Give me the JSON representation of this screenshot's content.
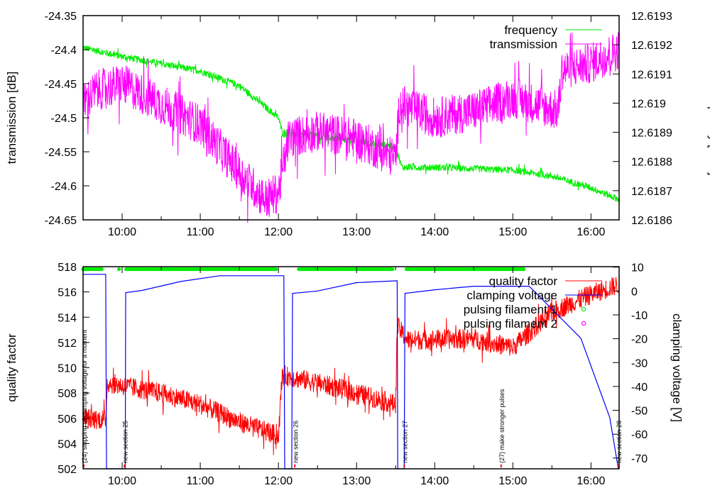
{
  "chart_data": [
    {
      "type": "line",
      "panel": "top",
      "ylabel": "transmission [dB]",
      "y2label": "frequency [GHz]",
      "xlim_hours": [
        9.5,
        16.36
      ],
      "xticks": [
        "10:00",
        "11:00",
        "12:00",
        "13:00",
        "14:00",
        "15:00",
        "16:00"
      ],
      "xtick_hours": [
        10,
        11,
        12,
        13,
        14,
        15,
        16
      ],
      "ylim": [
        -24.65,
        -24.35
      ],
      "yticks": [
        "-24.35",
        "-24.4",
        "-24.45",
        "-24.5",
        "-24.55",
        "-24.6",
        "-24.65"
      ],
      "ytick_values": [
        -24.35,
        -24.4,
        -24.45,
        -24.5,
        -24.55,
        -24.6,
        -24.65
      ],
      "y2lim": [
        12.6186,
        12.6193
      ],
      "y2ticks": [
        "12.6193",
        "12.6192",
        "12.6191",
        "12.619",
        "12.6189",
        "12.6188",
        "12.6187",
        "12.6186"
      ],
      "y2tick_values": [
        12.6193,
        12.6192,
        12.6191,
        12.619,
        12.6189,
        12.6188,
        12.6187,
        12.6186
      ],
      "legend_position": "top-right",
      "series": [
        {
          "name": "frequency",
          "axis": "y2",
          "color": "#00ee00",
          "noise": 1.2e-05,
          "x": [
            9.5,
            10.0,
            11.0,
            11.5,
            12.0,
            12.05,
            13.0,
            13.5,
            13.58,
            14.0,
            15.0,
            15.5,
            16.0,
            16.36
          ],
          "y": [
            12.61919,
            12.61916,
            12.61911,
            12.61906,
            12.61895,
            12.6189,
            12.61887,
            12.61885,
            12.61878,
            12.61878,
            12.61877,
            12.61875,
            12.61871,
            12.61867
          ]
        },
        {
          "name": "transmission",
          "axis": "y",
          "color": "#ff00ff",
          "noise": 0.03,
          "x": [
            9.5,
            9.67,
            10.0,
            10.5,
            11.0,
            11.5,
            11.83,
            12.0,
            12.13,
            12.5,
            13.0,
            13.5,
            13.55,
            14.0,
            14.5,
            15.0,
            15.58,
            15.63,
            16.0,
            16.36
          ],
          "y": [
            -24.48,
            -24.46,
            -24.45,
            -24.48,
            -24.51,
            -24.58,
            -24.62,
            -24.61,
            -24.53,
            -24.52,
            -24.53,
            -24.56,
            -24.48,
            -24.5,
            -24.49,
            -24.47,
            -24.49,
            -24.43,
            -24.42,
            -24.4
          ]
        }
      ]
    },
    {
      "type": "line",
      "panel": "bottom",
      "ylabel": "quality factor",
      "y2label": "clamping voltage [V]",
      "xlim_hours": [
        9.5,
        16.36
      ],
      "xticks": [
        "10:00",
        "11:00",
        "12:00",
        "13:00",
        "14:00",
        "15:00",
        "16:00"
      ],
      "xtick_hours": [
        10,
        11,
        12,
        13,
        14,
        15,
        16
      ],
      "ylim": [
        502,
        518
      ],
      "yticks": [
        "518",
        "516",
        "514",
        "512",
        "510",
        "508",
        "506",
        "504",
        "502"
      ],
      "ytick_values": [
        518,
        516,
        514,
        512,
        510,
        508,
        506,
        504,
        502
      ],
      "y2lim": [
        -74.5,
        10.2
      ],
      "y2ticks": [
        "10",
        "0",
        "-10",
        "-20",
        "-30",
        "-40",
        "-50",
        "-60",
        "-70"
      ],
      "y2tick_values": [
        10,
        0,
        -10,
        -20,
        -30,
        -40,
        -50,
        -60,
        -70
      ],
      "legend_position": "top-right",
      "series": [
        {
          "name": "quality factor",
          "axis": "y",
          "color": "#ff0000",
          "noise": 0.8,
          "x": [
            9.5,
            9.79,
            9.81,
            10.5,
            11.0,
            11.5,
            12.0,
            12.05,
            12.5,
            13.0,
            13.5,
            13.52,
            13.65,
            14.5,
            15.0,
            15.5,
            16.0,
            16.36
          ],
          "y": [
            506,
            505.9,
            508.8,
            508,
            507.1,
            505.7,
            504.6,
            509.4,
            508.8,
            508,
            507.1,
            513.3,
            512.2,
            512.3,
            511.6,
            514.4,
            515.8,
            516.6
          ]
        },
        {
          "name": "clamping voltage",
          "axis": "y2",
          "color": "#0000ff",
          "noise": 0,
          "x": [
            9.5,
            9.79,
            9.8,
            10.04,
            10.045,
            10.25,
            10.75,
            11.25,
            12.07,
            12.08,
            12.17,
            12.18,
            12.5,
            13.0,
            13.52,
            13.527,
            13.61,
            13.62,
            14.0,
            14.5,
            15.21,
            15.87,
            16.24,
            16.35
          ],
          "y": [
            7,
            7,
            -74.5,
            -74.5,
            -0.7,
            0.2,
            4,
            6.4,
            6.4,
            -74.5,
            -74.5,
            -1,
            0,
            3.5,
            4.3,
            -74.5,
            -74.5,
            -1,
            0.5,
            2,
            2,
            -19.8,
            -53,
            -74.5
          ]
        },
        {
          "name": "pulsing filament 1",
          "axis": "y",
          "color": "#00ee00",
          "style": "points",
          "y_value": 517.8,
          "ranges": [
            [
              9.5,
              9.74
            ],
            [
              9.96,
              9.96
            ],
            [
              10.05,
              11.98
            ],
            [
              12.26,
              13.46
            ],
            [
              13.64,
              15.14
            ]
          ]
        },
        {
          "name": "pulsing filament 2",
          "axis": "y",
          "color": "#ff00ff",
          "style": "points",
          "ranges": []
        }
      ],
      "annotations": [
        {
          "x": 9.51,
          "text": "(24) stopping of clamping voltage for a moment"
        },
        {
          "x": 10.03,
          "text": "new section 25"
        },
        {
          "x": 12.21,
          "text": "new section 26"
        },
        {
          "x": 13.61,
          "text": "new section 27"
        },
        {
          "x": 14.85,
          "text": "(27) make stronger pulses"
        },
        {
          "x": 16.35,
          "text": "new section 28"
        }
      ]
    }
  ]
}
